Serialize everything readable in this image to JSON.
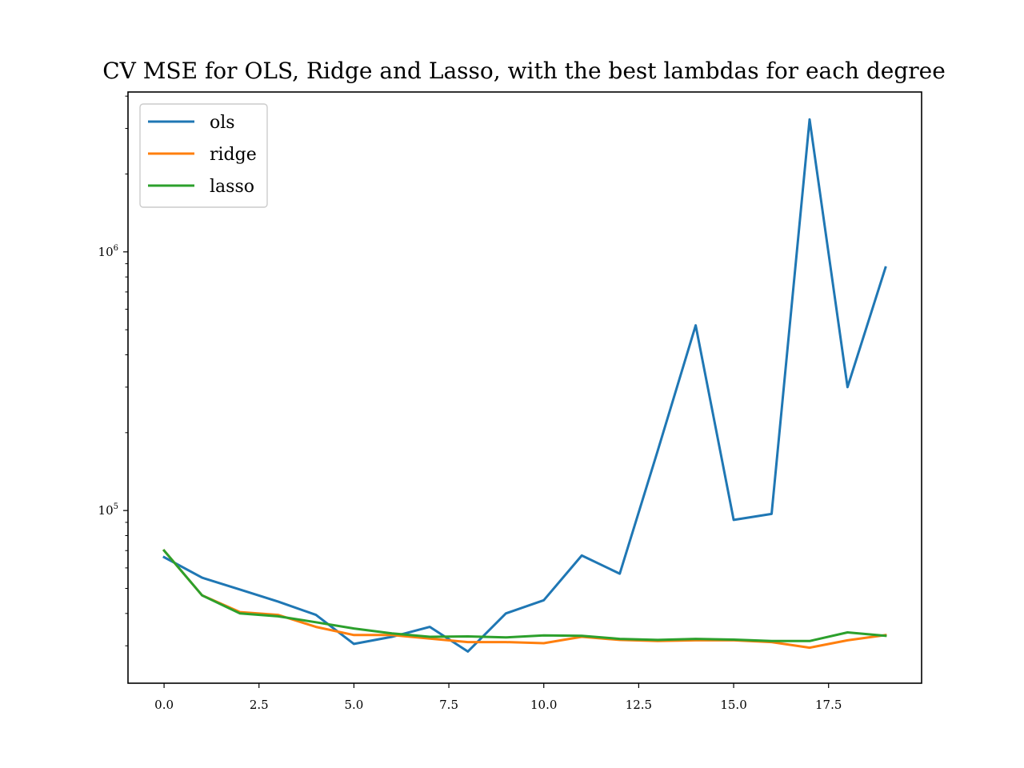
{
  "chart_data": {
    "type": "line",
    "title": "CV MSE for OLS, Ridge and Lasso, with the best lambdas for each degree",
    "xlabel": "",
    "ylabel": "",
    "yscale": "log",
    "xlim": [
      -0.95,
      19.95
    ],
    "ylim": [
      21500,
      4150000
    ],
    "x": [
      0,
      1,
      2,
      3,
      4,
      5,
      6,
      7,
      8,
      9,
      10,
      11,
      12,
      13,
      14,
      15,
      16,
      17,
      18,
      19
    ],
    "xticks": [
      0,
      2.5,
      5,
      7.5,
      10,
      12.5,
      15,
      17.5
    ],
    "xtick_labels": [
      "0.0",
      "2.5",
      "5.0",
      "7.5",
      "10.0",
      "12.5",
      "15.0",
      "17.5"
    ],
    "yticks": [
      100000,
      1000000
    ],
    "ytick_labels": [
      {
        "base": "10",
        "exp": "5"
      },
      {
        "base": "10",
        "exp": "6"
      }
    ],
    "grid": false,
    "legend_position": "top-left",
    "series": [
      {
        "name": "ols",
        "color": "#1f77b4",
        "values": [
          66000,
          55000,
          49500,
          44500,
          39500,
          30500,
          32500,
          35500,
          28500,
          40000,
          45000,
          67000,
          57000,
          170000,
          520000,
          92000,
          97000,
          3250000,
          300000,
          870000
        ]
      },
      {
        "name": "ridge",
        "color": "#ff7f0e",
        "values": [
          70000,
          47000,
          40500,
          39500,
          35500,
          33000,
          33000,
          32000,
          31000,
          31000,
          30700,
          32500,
          31600,
          31300,
          31500,
          31500,
          31000,
          29500,
          31500,
          33000
        ]
      },
      {
        "name": "lasso",
        "color": "#2ca02c",
        "values": [
          70000,
          47000,
          40000,
          39000,
          37000,
          35000,
          33500,
          32500,
          32600,
          32300,
          32900,
          32800,
          31900,
          31600,
          31900,
          31700,
          31300,
          31300,
          33800,
          32800
        ]
      }
    ]
  }
}
